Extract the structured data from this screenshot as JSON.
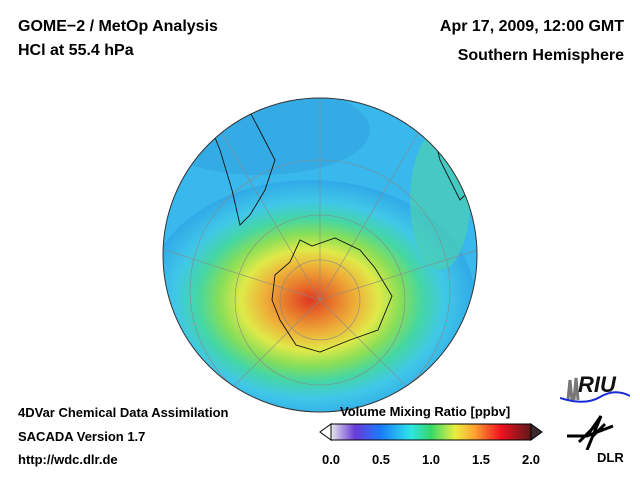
{
  "header": {
    "title": "GOME−2 / MetOp Analysis",
    "subtitle": "HCl at 55.4 hPa",
    "datetime": "Apr 17, 2009, 12:00 GMT",
    "region": "Southern Hemisphere"
  },
  "footer": {
    "line1": "4DVar Chemical Data Assimilation",
    "line2": "SACADA Version 1.7",
    "line3": "http://wdc.dlr.de"
  },
  "colorbar": {
    "title": "Volume Mixing Ratio [ppbv]",
    "min": 0.0,
    "max": 2.0,
    "ticks": [
      "0.0",
      "0.5",
      "1.0",
      "1.5",
      "2.0"
    ],
    "colors": [
      "#e8e8e8",
      "#6a3ad8",
      "#1a7cff",
      "#2ee6e6",
      "#36d86a",
      "#e8f040",
      "#ffa030",
      "#f01020",
      "#5a1a1a"
    ]
  },
  "logos": {
    "riu": "RIU",
    "dlr": "DLR"
  }
}
